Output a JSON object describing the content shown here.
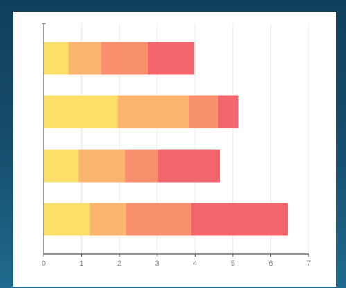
{
  "chart_data": {
    "type": "bar",
    "orientation": "horizontal",
    "stacked": true,
    "title": "",
    "xlabel": "",
    "ylabel": "",
    "xlim": [
      0,
      7
    ],
    "xticks": [
      "0",
      "1",
      "2",
      "3",
      "4",
      "5",
      "6",
      "7"
    ],
    "grid": "vertical",
    "legend": "none",
    "categories": [
      "",
      "",
      "",
      ""
    ],
    "series": [
      {
        "color": "#fde06a",
        "values": [
          0.65,
          1.95,
          0.92,
          1.22
        ]
      },
      {
        "color": "#fbb56e",
        "values": [
          0.87,
          1.88,
          1.22,
          0.95
        ]
      },
      {
        "color": "#f8906e",
        "values": [
          1.23,
          0.78,
          0.88,
          1.73
        ]
      },
      {
        "color": "#f4666e",
        "values": [
          1.23,
          0.53,
          1.65,
          2.55
        ]
      }
    ]
  }
}
